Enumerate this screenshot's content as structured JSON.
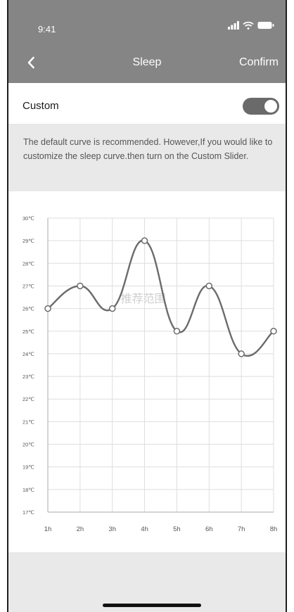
{
  "status_bar": {
    "time": "9:41",
    "icons": [
      "signal-icon",
      "wifi-icon",
      "battery-icon"
    ]
  },
  "nav": {
    "back_icon": "chevron-left-icon",
    "title": "Sleep",
    "confirm_label": "Confirm"
  },
  "custom": {
    "label": "Custom",
    "toggle_on": true
  },
  "info": {
    "text": "The default curve is recommended. However,If you would like to customize the sleep curve.then turn on the Custom Slider."
  },
  "colors": {
    "header_bg": "#858585",
    "info_bg": "#e9e9e9",
    "toggle_bg": "#6a6a6a",
    "curve": "#6b6b6b"
  },
  "chart_data": {
    "type": "line",
    "x": [
      "1h",
      "2h",
      "3h",
      "4h",
      "5h",
      "6h",
      "7h",
      "8h"
    ],
    "y": [
      26,
      27,
      26,
      29,
      25,
      27,
      24,
      25
    ],
    "y_ticks": [
      "30℃",
      "29℃",
      "28℃",
      "27℃",
      "26℃",
      "25℃",
      "24℃",
      "23℃",
      "22℃",
      "21℃",
      "20℃",
      "19℃",
      "18℃",
      "17℃"
    ],
    "ylim": [
      17,
      30
    ],
    "grid": true,
    "smooth": true,
    "watermark": "推荐范围"
  }
}
